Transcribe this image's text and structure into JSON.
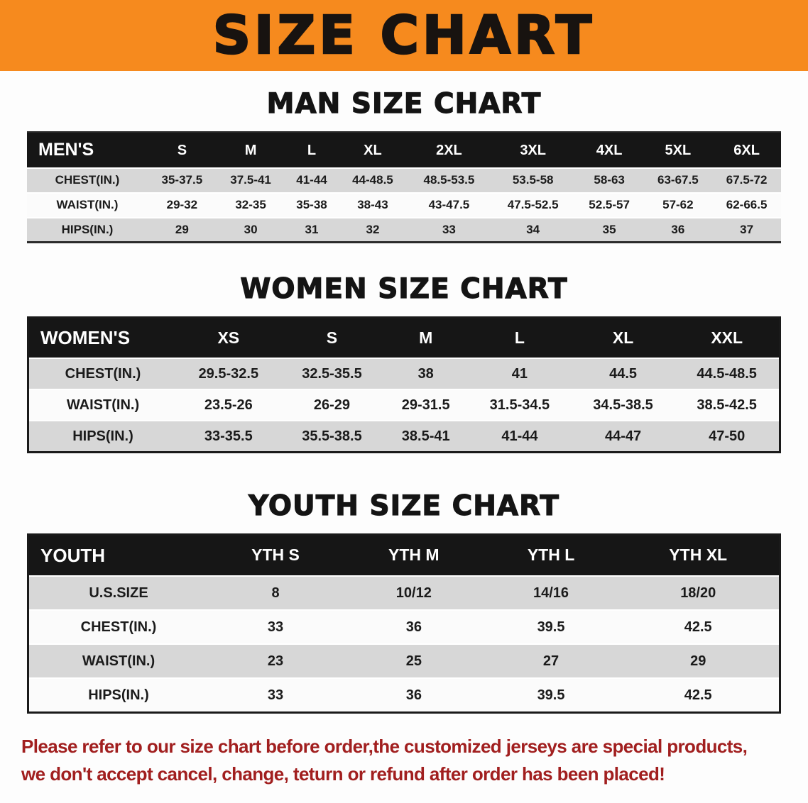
{
  "banner": {
    "title": "SIZE CHART"
  },
  "chart_data": [
    {
      "type": "table",
      "title": "MAN SIZE CHART",
      "header": [
        "MEN'S",
        "S",
        "M",
        "L",
        "XL",
        "2XL",
        "3XL",
        "4XL",
        "5XL",
        "6XL"
      ],
      "rows": [
        [
          "CHEST(IN.)",
          "35-37.5",
          "37.5-41",
          "41-44",
          "44-48.5",
          "48.5-53.5",
          "53.5-58",
          "58-63",
          "63-67.5",
          "67.5-72"
        ],
        [
          "WAIST(IN.)",
          "29-32",
          "32-35",
          "35-38",
          "38-43",
          "43-47.5",
          "47.5-52.5",
          "52.5-57",
          "57-62",
          "62-66.5"
        ],
        [
          "HIPS(IN.)",
          "29",
          "30",
          "31",
          "32",
          "33",
          "34",
          "35",
          "36",
          "37"
        ]
      ]
    },
    {
      "type": "table",
      "title": "WOMEN SIZE CHART",
      "header": [
        "WOMEN'S",
        "XS",
        "S",
        "M",
        "L",
        "XL",
        "XXL"
      ],
      "rows": [
        [
          "CHEST(IN.)",
          "29.5-32.5",
          "32.5-35.5",
          "38",
          "41",
          "44.5",
          "44.5-48.5"
        ],
        [
          "WAIST(IN.)",
          "23.5-26",
          "26-29",
          "29-31.5",
          "31.5-34.5",
          "34.5-38.5",
          "38.5-42.5"
        ],
        [
          "HIPS(IN.)",
          "33-35.5",
          "35.5-38.5",
          "38.5-41",
          "41-44",
          "44-47",
          "47-50"
        ]
      ]
    },
    {
      "type": "table",
      "title": "YOUTH SIZE CHART",
      "header": [
        "YOUTH",
        "YTH S",
        "YTH M",
        "YTH L",
        "YTH XL"
      ],
      "rows": [
        [
          "U.S.SIZE",
          "8",
          "10/12",
          "14/16",
          "18/20"
        ],
        [
          "CHEST(IN.)",
          "33",
          "36",
          "39.5",
          "42.5"
        ],
        [
          "WAIST(IN.)",
          "23",
          "25",
          "27",
          "29"
        ],
        [
          "HIPS(IN.)",
          "33",
          "36",
          "39.5",
          "42.5"
        ]
      ]
    }
  ],
  "footer": {
    "line1": "Please refer to our size chart before order,the customized jerseys are special products,",
    "line2": "we don't accept cancel, change, teturn or refund after order has been placed!"
  },
  "colors": {
    "banner_bg": "#f68a1e",
    "banner_text": "#181310",
    "table_header_bg": "#161616",
    "row_alt_bg": "#d7d7d7",
    "notice_text": "#a11f1f"
  }
}
